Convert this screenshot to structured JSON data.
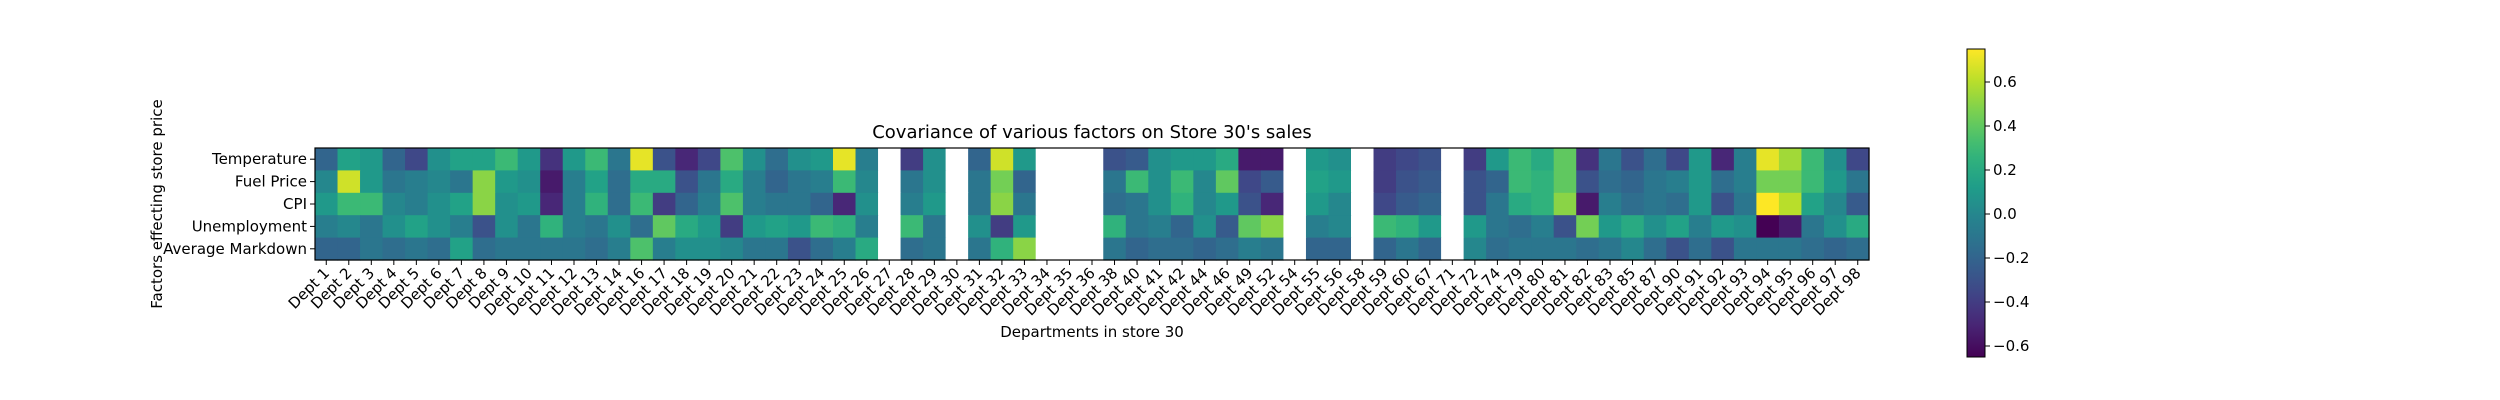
{
  "chart_data": {
    "type": "heatmap",
    "title": "Covariance of various factors on Store 30's sales",
    "xlabel": "Departments in store 30",
    "ylabel": "Factors effecting store price",
    "rows": [
      "Temperature",
      "Fuel Price",
      "CPI",
      "Unemployment",
      "Average Markdown"
    ],
    "columns": [
      "Dept 1",
      "Dept 2",
      "Dept 3",
      "Dept 4",
      "Dept 5",
      "Dept 6",
      "Dept 7",
      "Dept 8",
      "Dept 9",
      "Dept 10",
      "Dept 11",
      "Dept 12",
      "Dept 13",
      "Dept 14",
      "Dept 16",
      "Dept 17",
      "Dept 18",
      "Dept 19",
      "Dept 20",
      "Dept 21",
      "Dept 22",
      "Dept 23",
      "Dept 24",
      "Dept 25",
      "Dept 26",
      "Dept 27",
      "Dept 28",
      "Dept 29",
      "Dept 30",
      "Dept 31",
      "Dept 32",
      "Dept 33",
      "Dept 34",
      "Dept 35",
      "Dept 36",
      "Dept 38",
      "Dept 40",
      "Dept 41",
      "Dept 42",
      "Dept 44",
      "Dept 46",
      "Dept 49",
      "Dept 52",
      "Dept 54",
      "Dept 55",
      "Dept 56",
      "Dept 58",
      "Dept 59",
      "Dept 60",
      "Dept 67",
      "Dept 71",
      "Dept 72",
      "Dept 74",
      "Dept 79",
      "Dept 80",
      "Dept 81",
      "Dept 82",
      "Dept 83",
      "Dept 85",
      "Dept 87",
      "Dept 90",
      "Dept 91",
      "Dept 92",
      "Dept 93",
      "Dept 94",
      "Dept 95",
      "Dept 96",
      "Dept 97",
      "Dept 98"
    ],
    "values": [
      [
        -0.2,
        0.15,
        0.1,
        -0.2,
        -0.35,
        0.05,
        0.15,
        0.15,
        0.3,
        0.1,
        -0.45,
        0.1,
        0.3,
        -0.1,
        0.7,
        -0.3,
        -0.5,
        -0.35,
        0.35,
        0.05,
        -0.15,
        0.05,
        0.1,
        0.7,
        -0.05,
        null,
        -0.4,
        0.05,
        null,
        -0.2,
        0.65,
        0.1,
        null,
        null,
        null,
        -0.3,
        -0.25,
        0.05,
        0.1,
        0.1,
        0.2,
        -0.55,
        -0.55,
        null,
        0.1,
        0.05,
        null,
        -0.4,
        -0.35,
        -0.3,
        null,
        -0.4,
        0.1,
        0.3,
        0.2,
        0.4,
        -0.45,
        -0.1,
        -0.3,
        -0.15,
        -0.35,
        0.1,
        -0.5,
        -0.05,
        0.7,
        0.55,
        0.3,
        0.05,
        -0.35
      ],
      [
        0.0,
        0.65,
        0.1,
        -0.1,
        -0.05,
        0.0,
        -0.1,
        0.5,
        0.1,
        0.05,
        -0.55,
        -0.05,
        0.15,
        -0.15,
        0.2,
        0.2,
        -0.3,
        -0.1,
        0.2,
        -0.05,
        -0.2,
        -0.1,
        -0.05,
        0.3,
        0.0,
        null,
        -0.1,
        0.05,
        null,
        -0.1,
        0.45,
        -0.2,
        null,
        null,
        null,
        -0.1,
        0.3,
        0.05,
        0.3,
        0.0,
        0.4,
        -0.35,
        -0.25,
        null,
        0.15,
        0.1,
        null,
        -0.4,
        -0.3,
        -0.25,
        null,
        -0.3,
        -0.2,
        0.3,
        0.25,
        0.4,
        -0.3,
        -0.15,
        -0.2,
        -0.1,
        -0.05,
        0.1,
        -0.15,
        -0.05,
        0.45,
        0.45,
        0.3,
        0.1,
        -0.1
      ],
      [
        0.1,
        0.3,
        0.3,
        0.0,
        -0.05,
        0.05,
        0.15,
        0.5,
        0.05,
        0.1,
        -0.5,
        -0.05,
        0.25,
        -0.15,
        0.3,
        -0.4,
        -0.2,
        -0.05,
        0.35,
        -0.05,
        -0.1,
        -0.1,
        -0.2,
        -0.5,
        0.05,
        null,
        -0.05,
        0.1,
        null,
        -0.1,
        0.5,
        -0.1,
        null,
        null,
        null,
        -0.15,
        -0.1,
        0.05,
        0.25,
        0.0,
        0.1,
        -0.3,
        -0.5,
        null,
        0.1,
        0.0,
        null,
        -0.35,
        -0.25,
        -0.2,
        null,
        -0.3,
        -0.1,
        0.2,
        0.25,
        0.5,
        -0.55,
        -0.05,
        -0.15,
        -0.1,
        -0.15,
        0.1,
        -0.3,
        -0.1,
        0.75,
        0.6,
        0.15,
        0.0,
        -0.25
      ],
      [
        -0.05,
        0.0,
        -0.1,
        0.05,
        0.15,
        0.05,
        -0.05,
        -0.3,
        0.05,
        -0.1,
        0.25,
        -0.05,
        -0.1,
        0.05,
        -0.15,
        0.4,
        0.2,
        0.1,
        -0.4,
        0.1,
        0.15,
        0.1,
        0.3,
        0.25,
        -0.05,
        null,
        0.3,
        -0.1,
        null,
        0.05,
        -0.4,
        0.1,
        null,
        null,
        null,
        0.25,
        -0.1,
        -0.05,
        -0.2,
        0.05,
        -0.25,
        0.4,
        0.5,
        null,
        -0.05,
        0.0,
        null,
        0.3,
        0.25,
        0.1,
        null,
        0.1,
        -0.1,
        -0.15,
        -0.05,
        -0.3,
        0.45,
        0.1,
        0.2,
        0.05,
        0.15,
        -0.05,
        0.1,
        0.05,
        -0.65,
        -0.55,
        -0.1,
        0.05,
        0.2
      ],
      [
        -0.2,
        -0.2,
        -0.1,
        -0.15,
        -0.1,
        -0.15,
        0.15,
        -0.15,
        -0.1,
        -0.1,
        -0.1,
        -0.1,
        -0.15,
        -0.05,
        0.35,
        -0.05,
        0.05,
        0.05,
        0.0,
        -0.1,
        -0.1,
        -0.3,
        -0.15,
        -0.05,
        0.2,
        null,
        -0.15,
        -0.1,
        null,
        -0.1,
        0.25,
        0.5,
        null,
        null,
        null,
        -0.1,
        -0.2,
        -0.15,
        -0.15,
        -0.2,
        -0.15,
        -0.05,
        -0.1,
        null,
        -0.2,
        -0.2,
        null,
        -0.2,
        -0.1,
        -0.2,
        null,
        0.0,
        -0.15,
        -0.1,
        -0.1,
        -0.1,
        -0.15,
        -0.1,
        0.0,
        -0.15,
        -0.3,
        -0.15,
        -0.3,
        -0.1,
        -0.1,
        -0.1,
        -0.15,
        -0.2,
        -0.15
      ]
    ],
    "vmin": -0.65,
    "vmax": 0.75,
    "colormap": "viridis",
    "colorbar_ticks": [
      -0.6,
      -0.4,
      -0.2,
      0.0,
      0.2,
      0.4,
      0.6
    ],
    "colorbar_tick_labels": [
      "−0.6",
      "−0.4",
      "−0.2",
      "0.0",
      "0.2",
      "0.4",
      "0.6"
    ],
    "nan_color": "#ffffff"
  }
}
